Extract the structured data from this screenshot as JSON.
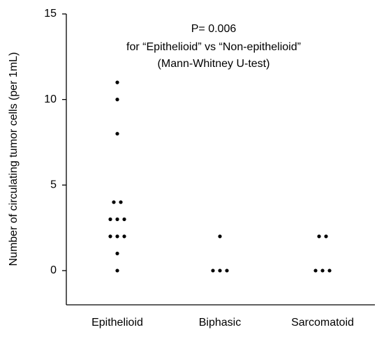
{
  "chart_data": {
    "type": "strip",
    "annotation": [
      "P= 0.006",
      "for “Epithelioid” vs “Non-epithelioid”",
      "(Mann-Whitney U-test)"
    ],
    "ylabel": "Number of circulating tumor cells (per 1mL)",
    "categories": [
      "Epithelioid",
      "Biphasic",
      "Sarcomatoid"
    ],
    "values": [
      [
        11,
        10,
        8,
        4,
        4,
        3,
        3,
        3,
        2,
        2,
        2,
        1,
        0
      ],
      [
        2,
        0,
        0,
        0
      ],
      [
        2,
        2,
        0,
        0,
        0
      ]
    ],
    "color": "#000000",
    "ylim": [
      -2,
      15
    ],
    "yticks": [
      0,
      5,
      10,
      15
    ]
  }
}
